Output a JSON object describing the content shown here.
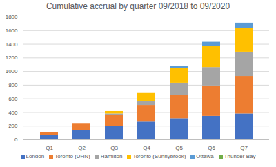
{
  "chart_data": {
    "type": "bar",
    "title": "Cumulative accrual by quarter 09/2018 to 09/2020",
    "categories": [
      "Q1",
      "Q2",
      "Q3",
      "Q4",
      "Q5",
      "Q6",
      "Q7"
    ],
    "stacked": true,
    "grid": true,
    "legend": "bottom",
    "ylim": [
      0,
      1800
    ],
    "yticks": [
      0,
      200,
      400,
      600,
      800,
      1000,
      1200,
      1400,
      1600,
      1800
    ],
    "series": [
      {
        "name": "London",
        "color": "#4472c4",
        "values": [
          65,
          140,
          200,
          260,
          310,
          345,
          380
        ]
      },
      {
        "name": "Toronto (UHN)",
        "color": "#ed7d31",
        "values": [
          40,
          100,
          160,
          245,
          340,
          445,
          550
        ]
      },
      {
        "name": "Hamilton",
        "color": "#a5a5a5",
        "values": [
          0,
          0,
          20,
          55,
          180,
          270,
          355
        ]
      },
      {
        "name": "Toronto (Sunnybrook)",
        "color": "#ffc000",
        "values": [
          0,
          0,
          35,
          120,
          220,
          310,
          345
        ]
      },
      {
        "name": "Ottawa",
        "color": "#5b9bd5",
        "values": [
          0,
          0,
          0,
          0,
          30,
          60,
          80
        ]
      },
      {
        "name": "Thunder Bay",
        "color": "#70ad47",
        "values": [
          0,
          0,
          0,
          0,
          0,
          0,
          0
        ]
      }
    ]
  }
}
